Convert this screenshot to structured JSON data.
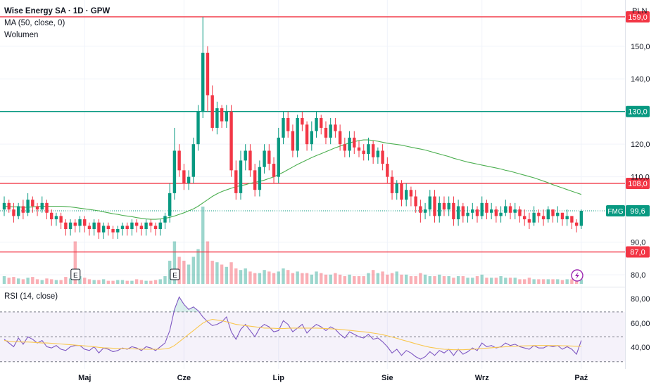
{
  "header": {
    "title": "Wise Energy SA · 1D · GPW",
    "ma_label": "MA (50, close, 0)",
    "volume_label": "Wolumen",
    "currency": "PLN"
  },
  "rsi": {
    "label": "RSI (14, close)",
    "ticks": [
      "80,00",
      "60,00",
      "40,00"
    ]
  },
  "markers": {
    "earnings_letter": "E",
    "flash_icon": "lightning-icon"
  },
  "colors": {
    "up": "#089981",
    "down": "#f23645",
    "ma": "#4caf50",
    "rsi_line": "#7e57c2",
    "rsi_ma": "#f9c74f",
    "level_red": "#f23645",
    "level_green": "#089981"
  },
  "chart_data": [
    {
      "type": "candlestick",
      "symbol": "Wise Energy SA",
      "interval": "1D",
      "exchange": "GPW",
      "currency": "PLN",
      "ylim": [
        77,
        162
      ],
      "y_ticks": [
        {
          "value": 150,
          "label": "150,0"
        },
        {
          "value": 140,
          "label": "140,0"
        },
        {
          "value": 120,
          "label": "120,0"
        },
        {
          "value": 110,
          "label": "110,0"
        },
        {
          "value": 90,
          "label": "90,0"
        },
        {
          "value": 80,
          "label": "80,0"
        }
      ],
      "x_ticks": [
        {
          "index": 17,
          "label": "Maj"
        },
        {
          "index": 38,
          "label": "Cze"
        },
        {
          "index": 58,
          "label": "Lip"
        },
        {
          "index": 81,
          "label": "Sie"
        },
        {
          "index": 101,
          "label": "Wrz"
        },
        {
          "index": 122,
          "label": "Paź"
        }
      ],
      "horizontal_levels": [
        {
          "value": 159.0,
          "label": "159,0",
          "color": "#f23645"
        },
        {
          "value": 130.0,
          "label": "130,0",
          "color": "#089981"
        },
        {
          "value": 108.0,
          "label": "108,0",
          "color": "#f23645"
        },
        {
          "value": 87.0,
          "label": "87,0",
          "color": "#f23645"
        }
      ],
      "last_price": {
        "value": 99.6,
        "label": "99,6",
        "tag": "FMG"
      },
      "earnings_markers": [
        15,
        36
      ],
      "close": [
        102,
        100,
        98,
        101,
        99,
        103,
        101,
        100,
        102,
        99,
        97,
        98,
        96,
        94,
        96,
        95,
        97,
        95,
        94,
        96,
        93,
        95,
        94,
        93,
        94,
        95,
        94,
        96,
        95,
        94,
        96,
        95,
        94,
        96,
        98,
        105,
        118,
        112,
        108,
        110,
        120,
        130,
        148,
        135,
        125,
        131,
        127,
        130,
        112,
        105,
        115,
        118,
        112,
        106,
        113,
        118,
        114,
        110,
        122,
        128,
        124,
        118,
        128,
        126,
        120,
        124,
        128,
        125,
        122,
        126,
        124,
        120,
        118,
        122,
        119,
        118,
        117,
        120,
        116,
        118,
        114,
        110,
        105,
        108,
        103,
        106,
        104,
        101,
        99,
        100,
        104,
        98,
        102,
        100,
        102,
        97,
        101,
        98,
        99,
        100,
        98,
        102,
        99,
        100,
        98,
        99,
        101,
        99,
        100,
        98,
        97,
        96,
        99,
        98,
        97,
        100,
        98,
        99,
        97,
        98,
        96,
        95,
        99.6
      ],
      "open": [
        100,
        102,
        100,
        98,
        101,
        99,
        103,
        101,
        100,
        102,
        99,
        97,
        98,
        96,
        94,
        96,
        95,
        97,
        95,
        94,
        96,
        93,
        95,
        94,
        93,
        94,
        95,
        94,
        96,
        95,
        94,
        96,
        95,
        94,
        96,
        98,
        105,
        118,
        112,
        108,
        110,
        120,
        130,
        148,
        135,
        125,
        131,
        127,
        130,
        112,
        105,
        115,
        118,
        112,
        106,
        113,
        118,
        114,
        110,
        122,
        128,
        124,
        118,
        128,
        126,
        120,
        124,
        128,
        125,
        122,
        126,
        124,
        120,
        118,
        122,
        119,
        118,
        117,
        120,
        116,
        118,
        114,
        110,
        105,
        108,
        103,
        106,
        104,
        101,
        99,
        100,
        104,
        98,
        102,
        100,
        102,
        97,
        101,
        98,
        99,
        100,
        98,
        102,
        99,
        100,
        98,
        99,
        101,
        99,
        100,
        98,
        97,
        96,
        99,
        98,
        97,
        100,
        98,
        99,
        97,
        98,
        96,
        95
      ],
      "high": [
        104,
        103,
        102,
        102,
        103,
        105,
        104,
        102,
        104,
        103,
        100,
        99,
        99,
        97,
        97,
        97,
        98,
        98,
        96,
        97,
        97,
        96,
        96,
        95,
        95,
        96,
        96,
        97,
        97,
        96,
        97,
        97,
        96,
        97,
        99,
        108,
        125,
        120,
        114,
        112,
        122,
        132,
        159,
        150,
        138,
        133,
        132,
        132,
        132,
        115,
        118,
        120,
        120,
        114,
        115,
        120,
        120,
        116,
        125,
        130,
        130,
        126,
        129,
        130,
        127,
        127,
        130,
        129,
        127,
        128,
        128,
        126,
        122,
        124,
        124,
        121,
        120,
        122,
        121,
        119,
        120,
        116,
        112,
        109,
        109,
        108,
        107,
        106,
        103,
        102,
        106,
        106,
        104,
        104,
        104,
        104,
        103,
        102,
        101,
        102,
        101,
        104,
        103,
        102,
        101,
        101,
        103,
        102,
        102,
        101,
        100,
        99,
        101,
        100,
        100,
        101,
        100,
        101,
        99,
        100,
        98,
        97,
        100
      ],
      "low": [
        98,
        99,
        96,
        97,
        97,
        98,
        99,
        98,
        99,
        97,
        95,
        95,
        94,
        92,
        92,
        93,
        93,
        93,
        92,
        92,
        91,
        91,
        92,
        91,
        91,
        92,
        92,
        92,
        93,
        92,
        92,
        93,
        92,
        92,
        94,
        96,
        103,
        110,
        106,
        106,
        108,
        118,
        128,
        130,
        124,
        123,
        125,
        125,
        110,
        103,
        103,
        112,
        110,
        104,
        104,
        111,
        112,
        108,
        108,
        120,
        122,
        116,
        116,
        124,
        118,
        118,
        122,
        123,
        120,
        120,
        122,
        118,
        116,
        116,
        117,
        116,
        115,
        115,
        114,
        114,
        112,
        108,
        103,
        103,
        101,
        101,
        101,
        99,
        96,
        97,
        98,
        96,
        96,
        98,
        98,
        95,
        95,
        96,
        96,
        97,
        96,
        97,
        97,
        97,
        96,
        96,
        98,
        97,
        97,
        96,
        95,
        94,
        95,
        96,
        95,
        96,
        96,
        96,
        95,
        95,
        94,
        93,
        94
      ],
      "volume": [
        0.1,
        0.08,
        0.09,
        0.07,
        0.06,
        0.08,
        0.09,
        0.06,
        0.05,
        0.07,
        0.06,
        0.05,
        0.05,
        0.09,
        0.07,
        0.55,
        0.1,
        0.08,
        0.06,
        0.05,
        0.05,
        0.06,
        0.04,
        0.04,
        0.05,
        0.05,
        0.04,
        0.04,
        0.06,
        0.05,
        0.04,
        0.04,
        0.05,
        0.06,
        0.1,
        0.3,
        0.55,
        0.35,
        0.3,
        0.25,
        0.35,
        0.45,
        1.0,
        0.55,
        0.3,
        0.28,
        0.25,
        0.22,
        0.28,
        0.2,
        0.18,
        0.2,
        0.16,
        0.14,
        0.14,
        0.18,
        0.16,
        0.14,
        0.16,
        0.2,
        0.18,
        0.14,
        0.16,
        0.14,
        0.14,
        0.12,
        0.16,
        0.14,
        0.12,
        0.12,
        0.14,
        0.12,
        0.1,
        0.12,
        0.1,
        0.1,
        0.1,
        0.14,
        0.18,
        0.14,
        0.16,
        0.12,
        0.14,
        0.16,
        0.12,
        0.12,
        0.1,
        0.1,
        0.14,
        0.12,
        0.1,
        0.1,
        0.12,
        0.1,
        0.1,
        0.08,
        0.1,
        0.1,
        0.08,
        0.08,
        0.1,
        0.12,
        0.08,
        0.08,
        0.08,
        0.1,
        0.08,
        0.08,
        0.08,
        0.06,
        0.06,
        0.08,
        0.06,
        0.06,
        0.06,
        0.06,
        0.06,
        0.06,
        0.05,
        0.06,
        0.06,
        0.05,
        0.06
      ],
      "ma50": [
        101,
        100.9,
        100.8,
        100.8,
        100.7,
        100.7,
        100.8,
        100.9,
        101,
        101,
        101,
        101,
        101,
        100.9,
        100.8,
        100.6,
        100.4,
        100.2,
        100,
        99.8,
        99.6,
        99.3,
        99,
        98.7,
        98.5,
        98.2,
        98,
        97.8,
        97.5,
        97.3,
        97.1,
        97,
        97,
        97.1,
        97.3,
        97.6,
        98,
        98.5,
        99,
        99.6,
        100.2,
        101,
        102,
        103,
        104,
        104.8,
        105.5,
        106,
        106.5,
        107,
        107.3,
        107.6,
        108,
        108.3,
        108.6,
        109,
        109.5,
        110,
        110.7,
        111.4,
        112.2,
        113,
        113.8,
        114.5,
        115.2,
        115.9,
        116.5,
        117.1,
        117.7,
        118.3,
        118.9,
        119.4,
        119.9,
        120.4,
        120.8,
        121.1,
        121.3,
        121.3,
        121.1,
        120.9,
        120.6,
        120.3,
        120.1,
        119.9,
        119.7,
        119.4,
        119.1,
        118.8,
        118.5,
        118.2,
        117.8,
        117.4,
        117,
        116.6,
        116.2,
        115.7,
        115.3,
        114.9,
        114.5,
        114.2,
        113.9,
        113.6,
        113.3,
        113,
        112.7,
        112.4,
        112,
        111.7,
        111.3,
        110.9,
        110.5,
        110.1,
        109.7,
        109.2,
        108.7,
        108.2,
        107.6,
        107.1,
        106.6,
        106.1,
        105.6,
        105.1,
        104.6
      ]
    },
    {
      "type": "line",
      "title": "RSI (14, close)",
      "ylim": [
        27,
        88
      ],
      "bands": [
        30,
        50,
        70
      ],
      "y_ticks": [
        80,
        60,
        40
      ],
      "series": [
        {
          "name": "RSI",
          "values": [
            48,
            45,
            42,
            49,
            44,
            50,
            48,
            45,
            47,
            42,
            41,
            43,
            40,
            39,
            42,
            43,
            43,
            40,
            39,
            42,
            37,
            41,
            40,
            38,
            39,
            41,
            40,
            42,
            41,
            39,
            42,
            41,
            39,
            42,
            45,
            55,
            72,
            82,
            76,
            72,
            74,
            71,
            66,
            62,
            59,
            60,
            62,
            66,
            54,
            48,
            56,
            60,
            55,
            50,
            57,
            60,
            58,
            54,
            55,
            63,
            60,
            54,
            57,
            60,
            53,
            57,
            60,
            58,
            55,
            58,
            56,
            52,
            49,
            54,
            52,
            50,
            49,
            52,
            48,
            49,
            46,
            42,
            37,
            40,
            35,
            39,
            37,
            34,
            32,
            34,
            38,
            35,
            39,
            37,
            40,
            35,
            40,
            36,
            38,
            41,
            39,
            45,
            42,
            43,
            41,
            42,
            45,
            43,
            44,
            42,
            41,
            40,
            43,
            41,
            41,
            43,
            42,
            43,
            40,
            42,
            40,
            36,
            47
          ]
        },
        {
          "name": "RSI MA",
          "values": [
            47,
            46.5,
            46,
            46,
            45.8,
            45.8,
            45.6,
            45.3,
            45,
            45,
            44.8,
            44.5,
            44.2,
            43.9,
            43.6,
            43.3,
            43,
            42.7,
            42.4,
            42,
            41.5,
            41.2,
            41,
            40.8,
            40.6,
            40.5,
            40.4,
            40.3,
            40.2,
            40.1,
            40,
            40,
            40,
            40,
            40.3,
            41,
            43,
            46,
            49,
            52,
            55,
            58,
            61,
            63,
            64,
            63.5,
            63,
            62,
            61,
            60,
            59.5,
            59,
            58.5,
            58,
            57.5,
            57,
            57,
            56.8,
            56.6,
            56.6,
            56.8,
            57,
            57,
            57,
            57,
            57,
            57,
            56.8,
            56.6,
            56.4,
            56.2,
            56,
            55.6,
            55.2,
            54.8,
            54.4,
            54,
            53.6,
            53,
            52.4,
            51.7,
            50.8,
            49.8,
            48.8,
            47.6,
            46.6,
            45.5,
            44.4,
            43.4,
            42.4,
            41.6,
            41,
            40.4,
            40,
            39.8,
            39.6,
            39.6,
            39.6,
            39.8,
            40,
            40.3,
            40.6,
            40.9,
            41.2,
            41.5,
            41.7,
            42,
            42.2,
            42.4,
            42.6,
            42.7,
            42.8,
            42.9,
            43,
            43,
            43,
            42.9,
            42.9,
            42.8,
            42.7,
            42.6,
            42.4,
            42.5
          ]
        }
      ]
    }
  ]
}
